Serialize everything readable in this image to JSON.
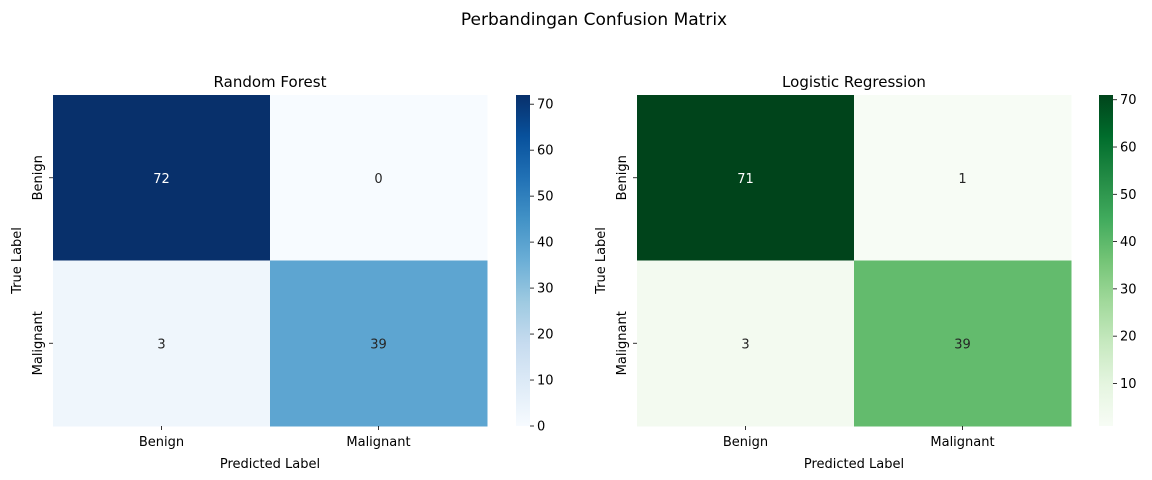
{
  "figure": {
    "suptitle": "Perbandingan Confusion Matrix"
  },
  "chart_data": [
    {
      "type": "heatmap",
      "title": "Random Forest",
      "xlabel": "Predicted Label",
      "ylabel": "True Label",
      "x_categories": [
        "Benign",
        "Malignant"
      ],
      "y_categories": [
        "Benign",
        "Malignant"
      ],
      "values": [
        [
          72,
          0
        ],
        [
          3,
          39
        ]
      ],
      "colormap": "Blues",
      "colormap_stops": [
        "#f7fbff",
        "#deebf7",
        "#c6dbef",
        "#9ecae1",
        "#6baed6",
        "#4292c6",
        "#2171b5",
        "#08519c",
        "#08306b"
      ],
      "vmin": 0,
      "vmax": 72,
      "colorbar_ticks": [
        0,
        10,
        20,
        30,
        40,
        50,
        60,
        70
      ],
      "annotate": true
    },
    {
      "type": "heatmap",
      "title": "Logistic Regression",
      "xlabel": "Predicted Label",
      "ylabel": "True Label",
      "x_categories": [
        "Benign",
        "Malignant"
      ],
      "y_categories": [
        "Benign",
        "Malignant"
      ],
      "values": [
        [
          71,
          1
        ],
        [
          3,
          39
        ]
      ],
      "colormap": "Greens",
      "colormap_stops": [
        "#f7fcf5",
        "#e5f5e0",
        "#c7e9c0",
        "#a1d99b",
        "#74c476",
        "#41ab5d",
        "#238b45",
        "#006d2c",
        "#00441b"
      ],
      "vmin": 1,
      "vmax": 71,
      "colorbar_ticks": [
        10,
        20,
        30,
        40,
        50,
        60,
        70
      ],
      "annotate": true
    }
  ]
}
